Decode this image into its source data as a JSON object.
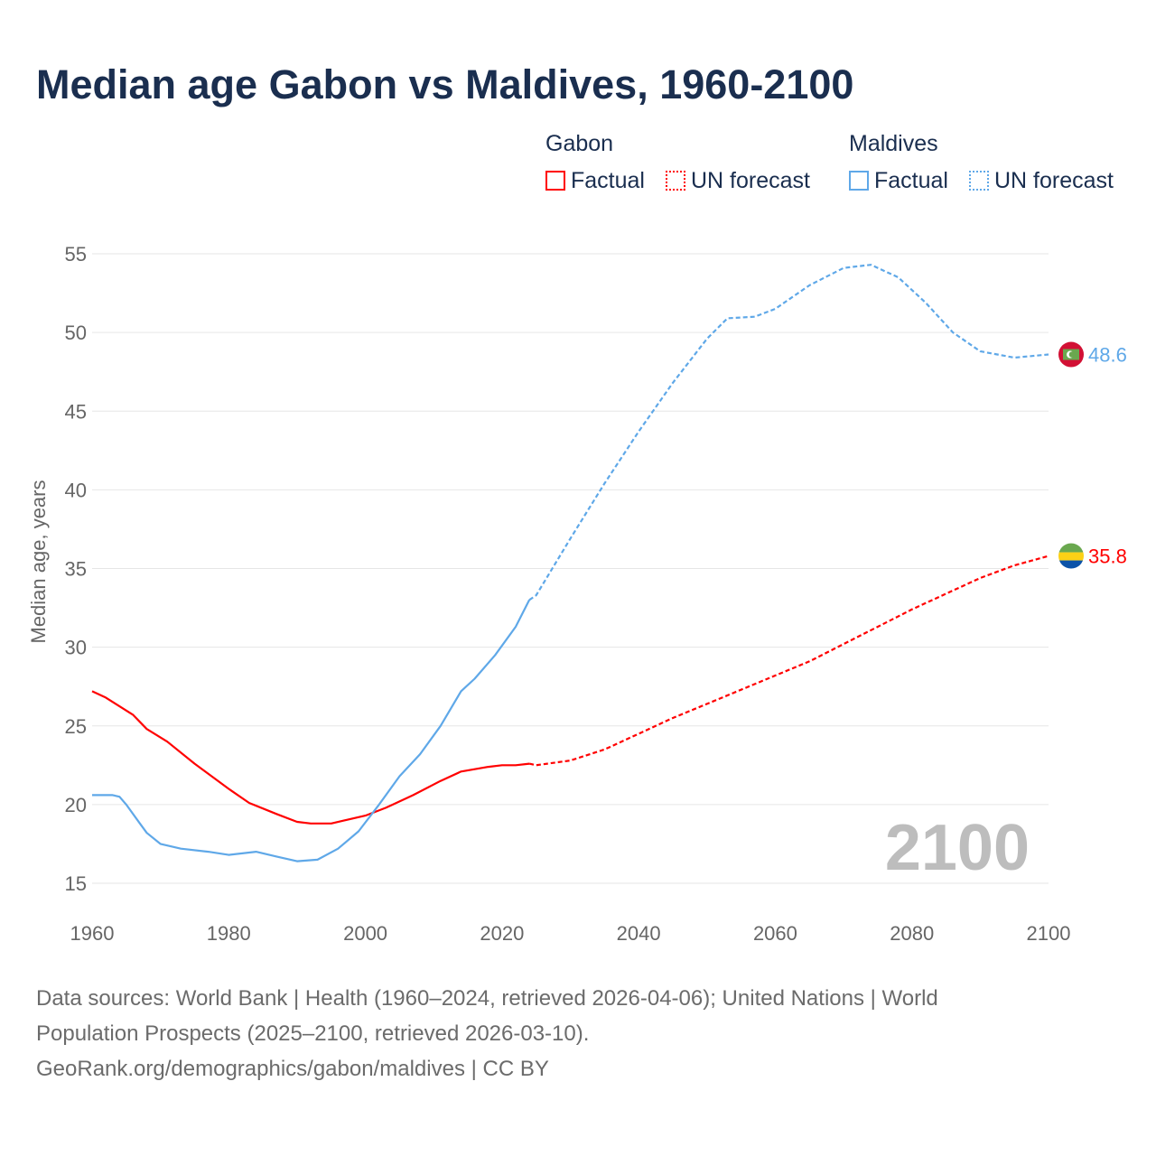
{
  "title": "Median age Gabon vs Maldives, 1960-2100",
  "legend": {
    "groups": [
      {
        "name": "Gabon",
        "factual": "Factual",
        "forecast": "UN forecast",
        "color": "#ff0000"
      },
      {
        "name": "Maldives",
        "factual": "Factual",
        "forecast": "UN forecast",
        "color": "#5fa8e8"
      }
    ]
  },
  "year_label": "2100",
  "source_lines": [
    "Data sources: World Bank | Health (1960–2024, retrieved 2026-04-06); United Nations | World",
    "Population Prospects (2025–2100, retrieved 2026-03-10).",
    "GeoRank.org/demographics/gabon/maldives | CC BY"
  ],
  "chart_data": {
    "type": "line",
    "title": "Median age Gabon vs Maldives, 1960-2100",
    "xlabel": "",
    "ylabel": "Median age, years",
    "xlim": [
      1960,
      2100
    ],
    "ylim": [
      15,
      55
    ],
    "xticks": [
      1960,
      1980,
      2000,
      2020,
      2040,
      2060,
      2080,
      2100
    ],
    "yticks": [
      15,
      20,
      25,
      30,
      35,
      40,
      45,
      50,
      55
    ],
    "grid": true,
    "legend": "top-right",
    "series": [
      {
        "name": "Gabon",
        "end_label": "35.8",
        "color": "#ff0000",
        "factual": [
          [
            1960,
            27.2
          ],
          [
            1962,
            26.8
          ],
          [
            1966,
            25.7
          ],
          [
            1968,
            24.8
          ],
          [
            1971,
            24.0
          ],
          [
            1975,
            22.6
          ],
          [
            1980,
            21.0
          ],
          [
            1983,
            20.1
          ],
          [
            1987,
            19.4
          ],
          [
            1990,
            18.9
          ],
          [
            1992,
            18.8
          ],
          [
            1995,
            18.8
          ],
          [
            2000,
            19.3
          ],
          [
            2003,
            19.8
          ],
          [
            2007,
            20.6
          ],
          [
            2011,
            21.5
          ],
          [
            2014,
            22.1
          ],
          [
            2018,
            22.4
          ],
          [
            2020,
            22.5
          ],
          [
            2022,
            22.5
          ],
          [
            2024,
            22.6
          ]
        ],
        "forecast": [
          [
            2024,
            22.6
          ],
          [
            2025,
            22.5
          ],
          [
            2030,
            22.8
          ],
          [
            2035,
            23.5
          ],
          [
            2040,
            24.5
          ],
          [
            2045,
            25.5
          ],
          [
            2050,
            26.4
          ],
          [
            2055,
            27.3
          ],
          [
            2060,
            28.2
          ],
          [
            2065,
            29.1
          ],
          [
            2070,
            30.2
          ],
          [
            2075,
            31.3
          ],
          [
            2080,
            32.4
          ],
          [
            2085,
            33.4
          ],
          [
            2090,
            34.4
          ],
          [
            2095,
            35.2
          ],
          [
            2100,
            35.8
          ]
        ]
      },
      {
        "name": "Maldives",
        "end_label": "48.6",
        "color": "#5fa8e8",
        "factual": [
          [
            1960,
            20.6
          ],
          [
            1963,
            20.6
          ],
          [
            1964,
            20.5
          ],
          [
            1965,
            20.0
          ],
          [
            1967,
            18.8
          ],
          [
            1968,
            18.2
          ],
          [
            1970,
            17.5
          ],
          [
            1973,
            17.2
          ],
          [
            1977,
            17.0
          ],
          [
            1980,
            16.8
          ],
          [
            1984,
            17.0
          ],
          [
            1987,
            16.7
          ],
          [
            1990,
            16.4
          ],
          [
            1993,
            16.5
          ],
          [
            1996,
            17.2
          ],
          [
            1999,
            18.3
          ],
          [
            2002,
            20.0
          ],
          [
            2005,
            21.8
          ],
          [
            2008,
            23.2
          ],
          [
            2011,
            25.0
          ],
          [
            2014,
            27.2
          ],
          [
            2016,
            28.0
          ],
          [
            2019,
            29.5
          ],
          [
            2022,
            31.3
          ],
          [
            2024,
            33.0
          ]
        ],
        "forecast": [
          [
            2024,
            33.0
          ],
          [
            2025,
            33.3
          ],
          [
            2030,
            36.9
          ],
          [
            2035,
            40.4
          ],
          [
            2040,
            43.7
          ],
          [
            2045,
            46.8
          ],
          [
            2050,
            49.6
          ],
          [
            2053,
            50.9
          ],
          [
            2057,
            51.0
          ],
          [
            2060,
            51.5
          ],
          [
            2065,
            53.0
          ],
          [
            2070,
            54.1
          ],
          [
            2074,
            54.3
          ],
          [
            2078,
            53.5
          ],
          [
            2082,
            51.9
          ],
          [
            2086,
            50.0
          ],
          [
            2090,
            48.8
          ],
          [
            2095,
            48.4
          ],
          [
            2100,
            48.6
          ]
        ]
      }
    ]
  }
}
